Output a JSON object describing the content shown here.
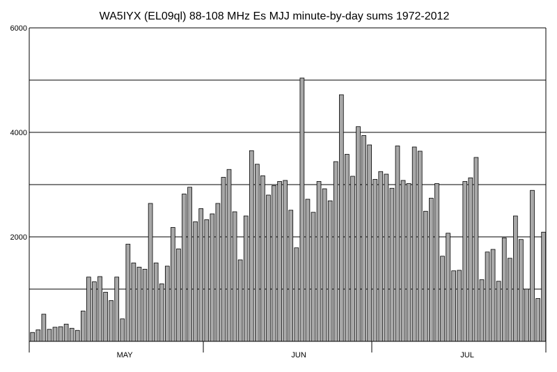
{
  "chart_data": {
    "type": "bar",
    "title": "WA5IYX (EL09ql) 88-108 MHz Es MJJ minute-by-day sums 1972-2012",
    "xlabel": "",
    "ylabel": "",
    "ylim": [
      0,
      6000
    ],
    "y_tick_labels": [
      {
        "value": 2000,
        "label": "2000"
      },
      {
        "value": 4000,
        "label": "4000"
      },
      {
        "value": 6000,
        "label": "6000"
      }
    ],
    "gridlines_y": [
      1000,
      2000,
      3000,
      4000,
      5000,
      6000
    ],
    "grid": true,
    "legend": "none",
    "bar_color": "#a8a8a8",
    "month_labels": [
      {
        "label": "MAY",
        "start_day": 17
      },
      {
        "label": "JUN",
        "start_day": 48
      },
      {
        "label": "JUL",
        "start_day": 78
      }
    ],
    "x_boundaries_days": [
      0,
      31,
      61,
      92
    ],
    "values": [
      170,
      220,
      520,
      230,
      270,
      280,
      330,
      250,
      210,
      580,
      1230,
      1140,
      1240,
      940,
      780,
      1230,
      430,
      1860,
      1500,
      1420,
      1380,
      2640,
      1500,
      1100,
      1440,
      2180,
      1770,
      2820,
      2950,
      2290,
      2540,
      2330,
      2440,
      2640,
      3140,
      3290,
      2480,
      1560,
      2400,
      3650,
      3390,
      3170,
      2800,
      2980,
      3060,
      3080,
      2510,
      1790,
      5040,
      2720,
      2470,
      3060,
      2920,
      2690,
      3440,
      4720,
      3580,
      3160,
      4110,
      3940,
      3760,
      3100,
      3250,
      3200,
      2930,
      3740,
      3080,
      3020,
      3720,
      3640,
      2490,
      2740,
      3020,
      1630,
      2070,
      1350,
      1360,
      3060,
      3130,
      3520,
      1180,
      1710,
      1760,
      1150,
      1980,
      1590,
      2400,
      1950,
      1000,
      2890,
      820,
      2090
    ]
  }
}
